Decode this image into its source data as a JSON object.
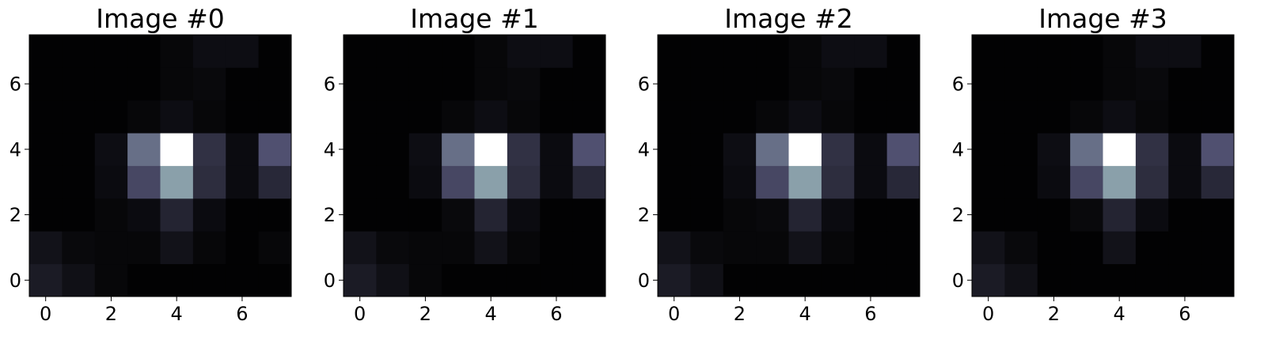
{
  "chart_data": [
    {
      "type": "heatmap",
      "title": "Image #0",
      "x": [
        0,
        1,
        2,
        3,
        4,
        5,
        6,
        7
      ],
      "y": [
        0,
        1,
        2,
        3,
        4,
        5,
        6,
        7
      ],
      "xticks": [
        "0",
        "2",
        "4",
        "6"
      ],
      "yticks": [
        "0",
        "2",
        "4",
        "6"
      ],
      "xlim": [
        -0.5,
        7.5
      ],
      "ylim": [
        -0.5,
        7.5
      ],
      "colormap": "bone",
      "grid": false,
      "values": [
        [
          0.12,
          0.07,
          0.03,
          0.01,
          0.01,
          0.01,
          0.01,
          0.01
        ],
        [
          0.08,
          0.04,
          0.03,
          0.03,
          0.08,
          0.03,
          0.01,
          0.03
        ],
        [
          0.01,
          0.01,
          0.03,
          0.05,
          0.16,
          0.05,
          0.01,
          0.01
        ],
        [
          0.01,
          0.01,
          0.05,
          0.32,
          0.62,
          0.2,
          0.05,
          0.18
        ],
        [
          0.01,
          0.01,
          0.06,
          0.46,
          1.0,
          0.22,
          0.05,
          0.36
        ],
        [
          0.01,
          0.01,
          0.01,
          0.03,
          0.06,
          0.03,
          0.01,
          0.01
        ],
        [
          0.01,
          0.01,
          0.01,
          0.01,
          0.03,
          0.04,
          0.01,
          0.01
        ],
        [
          0.01,
          0.01,
          0.01,
          0.01,
          0.03,
          0.06,
          0.06,
          0.01
        ]
      ]
    },
    {
      "type": "heatmap",
      "title": "Image #1",
      "x": [
        0,
        1,
        2,
        3,
        4,
        5,
        6,
        7
      ],
      "y": [
        0,
        1,
        2,
        3,
        4,
        5,
        6,
        7
      ],
      "xticks": [
        "0",
        "2",
        "4",
        "6"
      ],
      "yticks": [
        "0",
        "2",
        "4",
        "6"
      ],
      "xlim": [
        -0.5,
        7.5
      ],
      "ylim": [
        -0.5,
        7.5
      ],
      "colormap": "bone",
      "grid": false,
      "values": [
        [
          0.12,
          0.07,
          0.03,
          0.01,
          0.01,
          0.01,
          0.01,
          0.01
        ],
        [
          0.08,
          0.04,
          0.03,
          0.03,
          0.08,
          0.03,
          0.01,
          0.01
        ],
        [
          0.01,
          0.01,
          0.01,
          0.04,
          0.16,
          0.05,
          0.01,
          0.01
        ],
        [
          0.01,
          0.01,
          0.05,
          0.32,
          0.62,
          0.2,
          0.05,
          0.18
        ],
        [
          0.01,
          0.01,
          0.06,
          0.46,
          1.0,
          0.22,
          0.05,
          0.36
        ],
        [
          0.01,
          0.01,
          0.01,
          0.03,
          0.06,
          0.03,
          0.01,
          0.01
        ],
        [
          0.01,
          0.01,
          0.01,
          0.01,
          0.03,
          0.04,
          0.01,
          0.01
        ],
        [
          0.01,
          0.01,
          0.01,
          0.01,
          0.03,
          0.06,
          0.06,
          0.01
        ]
      ]
    },
    {
      "type": "heatmap",
      "title": "Image #2",
      "x": [
        0,
        1,
        2,
        3,
        4,
        5,
        6,
        7
      ],
      "y": [
        0,
        1,
        2,
        3,
        4,
        5,
        6,
        7
      ],
      "xticks": [
        "0",
        "2",
        "4",
        "6"
      ],
      "yticks": [
        "0",
        "2",
        "4",
        "6"
      ],
      "xlim": [
        -0.5,
        7.5
      ],
      "ylim": [
        -0.5,
        7.5
      ],
      "colormap": "bone",
      "grid": false,
      "values": [
        [
          0.12,
          0.07,
          0.01,
          0.01,
          0.01,
          0.01,
          0.01,
          0.01
        ],
        [
          0.08,
          0.04,
          0.03,
          0.03,
          0.08,
          0.03,
          0.01,
          0.01
        ],
        [
          0.01,
          0.01,
          0.03,
          0.04,
          0.16,
          0.05,
          0.01,
          0.01
        ],
        [
          0.01,
          0.01,
          0.05,
          0.32,
          0.62,
          0.2,
          0.05,
          0.18
        ],
        [
          0.01,
          0.01,
          0.06,
          0.46,
          1.0,
          0.22,
          0.05,
          0.36
        ],
        [
          0.01,
          0.01,
          0.01,
          0.03,
          0.06,
          0.03,
          0.01,
          0.01
        ],
        [
          0.01,
          0.01,
          0.01,
          0.01,
          0.03,
          0.04,
          0.01,
          0.01
        ],
        [
          0.01,
          0.01,
          0.01,
          0.01,
          0.03,
          0.06,
          0.06,
          0.01
        ]
      ]
    },
    {
      "type": "heatmap",
      "title": "Image #3",
      "x": [
        0,
        1,
        2,
        3,
        4,
        5,
        6,
        7
      ],
      "y": [
        0,
        1,
        2,
        3,
        4,
        5,
        6,
        7
      ],
      "xticks": [
        "0",
        "2",
        "4",
        "6"
      ],
      "yticks": [
        "0",
        "2",
        "4",
        "6"
      ],
      "xlim": [
        -0.5,
        7.5
      ],
      "ylim": [
        -0.5,
        7.5
      ],
      "colormap": "bone",
      "grid": false,
      "values": [
        [
          0.12,
          0.07,
          0.01,
          0.01,
          0.01,
          0.01,
          0.01,
          0.01
        ],
        [
          0.08,
          0.04,
          0.01,
          0.01,
          0.08,
          0.01,
          0.01,
          0.01
        ],
        [
          0.01,
          0.01,
          0.01,
          0.04,
          0.16,
          0.05,
          0.01,
          0.01
        ],
        [
          0.01,
          0.01,
          0.05,
          0.32,
          0.62,
          0.2,
          0.05,
          0.18
        ],
        [
          0.01,
          0.01,
          0.06,
          0.46,
          1.0,
          0.22,
          0.05,
          0.36
        ],
        [
          0.01,
          0.01,
          0.01,
          0.03,
          0.06,
          0.03,
          0.01,
          0.01
        ],
        [
          0.01,
          0.01,
          0.01,
          0.01,
          0.03,
          0.04,
          0.01,
          0.01
        ],
        [
          0.01,
          0.01,
          0.01,
          0.01,
          0.03,
          0.06,
          0.06,
          0.01
        ]
      ]
    }
  ]
}
